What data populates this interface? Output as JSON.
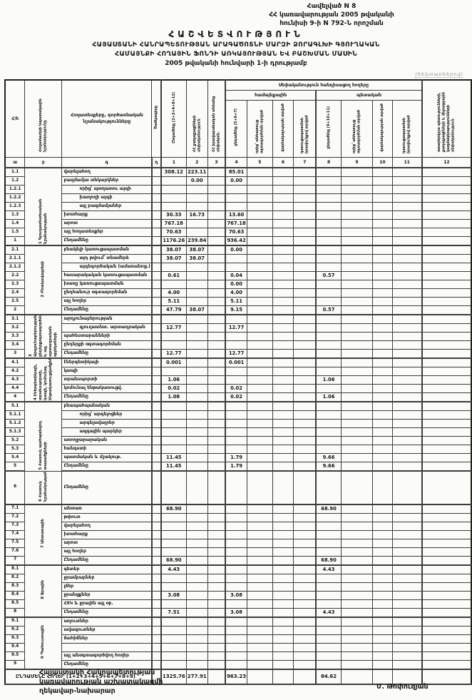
{
  "appendix": {
    "line1": "Հավելված N 8",
    "line2": "ՀՀ կառավարության 2005 թվականի",
    "line3": "հունիսի 9-ի N 792-Ն որոշման"
  },
  "title": {
    "line1": "ՀԱՇՎԵՏՎՈՒԹՅՈՒՆ",
    "line2": "ՀԱՅԱՍՏԱՆԻ ՀԱՆՐԱՊԵՏՈՒԹՅԱՆ ԱՐԱԳԱԾՈՏՆԻ ՄԱՐԶԻ ՁՈՐԱԳԼԽԻ ԳՅՈՒՂԱԿԱՆ",
    "line3": "ՀԱՄԱՅՆՔԻ ՀՈՂԱՅԻՆ ՖՈՆԴԻ ԱՌԿԱՅՈՒԹՅԱՆ ԵՎ ԲԱՇԽՄԱՆ ՄԱՍԻՆ",
    "line4": "2005 թվականի հունվարի 1-ի դրությամբ"
  },
  "unit_note": "(հեկտարներով)",
  "table": {
    "header": {
      "hh": "Հ/հ",
      "purpose": "Հողամասերի նպատակային նշանակությունը",
      "landtype": "Հողատեսքերը, գործառնական նշանակությունները",
      "code": "Ծածկագիրը",
      "c1": "Ընդամենը (2+3+4+8+12)",
      "c2": "ՀՀ քաղաքացիների սեփականություն",
      "c3": "ՀՀ իրավաբանական անձանց սեփական.",
      "group_band": "Սեփականություն հանդիսացող հողերը",
      "subgroup_left": "համայնքային",
      "subgroup_right": "պետական",
      "c4": "ընդամենը (5+6+7)",
      "c5": "որից՝ անհատույց օգտագործման տրված",
      "c6": "վարձակալության տրված",
      "c7": "կառուցապատման իրավունքով տրված",
      "c8": "ընդամենը (9+10+11)",
      "c9": "որից՝ անհատույց օգտագործման տրված",
      "c10": "վարձակալության տրված",
      "c11": "կառուցապատման իրավունքով տրված",
      "c12": "օտարերկրյա պետությունների, քաղաքացիների և միջազգային կազմակերպությունների սեփականություն"
    },
    "col_numbers": [
      "ա",
      "բ",
      "գ",
      "դ",
      "1",
      "2",
      "3",
      "4",
      "5",
      "6",
      "7",
      "8",
      "9",
      "10",
      "11",
      "12"
    ],
    "groups": [
      {
        "label": "1 Գյուղատնտեսական նշանակության",
        "rows": [
          {
            "n": "1.1",
            "t": "վարելահող",
            "v": {
              "c1": "308.12",
              "c2": "223.11",
              "c4": "85.01"
            }
          },
          {
            "n": "1.2",
            "t": "բազմամյա տնկարկներ",
            "v": {
              "c2": "0.00",
              "c4": "0.00"
            }
          },
          {
            "n": "1.2.1",
            "t": "որից՝ պտղատու այգի",
            "i": 1
          },
          {
            "n": "1.2.2",
            "t": "խաղողի այգի",
            "i": 1
          },
          {
            "n": "1.2.3",
            "t": "այլ բազմամյաներ",
            "i": 1
          },
          {
            "n": "1.3",
            "t": "խոտհարք",
            "v": {
              "c1": "30.33",
              "c2": "16.73",
              "c4": "13.60"
            }
          },
          {
            "n": "1.4",
            "t": "արոտ",
            "v": {
              "c1": "767.18",
              "c4": "767.18"
            }
          },
          {
            "n": "1.5",
            "t": "այլ հողատեսքեր",
            "v": {
              "c1": "70.63",
              "c4": "70.63"
            }
          },
          {
            "n": "1",
            "t": "Ընդամենը",
            "b": 1,
            "v": {
              "c1": "1176.26",
              "c2": "239.84",
              "c4": "936.42"
            }
          }
        ]
      },
      {
        "label": "2 Բնակավայրերի",
        "rows": [
          {
            "n": "2.1",
            "t": "բնակելի կառուցապատման",
            "v": {
              "c1": "38.07",
              "c2": "38.07",
              "c4": "0.00"
            }
          },
          {
            "n": "2.1.1",
            "t": "այդ թվում՝ տնամերձ",
            "i": 1,
            "v": {
              "c1": "38.07",
              "c2": "38.07"
            }
          },
          {
            "n": "2.1.2",
            "t": "այգեգործական (ամառանոց.)",
            "i": 1
          },
          {
            "n": "2.2",
            "t": "հասարակական կառուցապատման",
            "v": {
              "c1": "0.61",
              "c4": "0.04",
              "c8": "0.57"
            }
          },
          {
            "n": "2.3",
            "t": "խառը կառուցապատման",
            "v": {
              "c4": "0.00"
            }
          },
          {
            "n": "2.4",
            "t": "ընդհանուր օգտագործման",
            "v": {
              "c1": "4.00",
              "c4": "4.00"
            }
          },
          {
            "n": "2.5",
            "t": "այլ հողեր",
            "v": {
              "c1": "5.11",
              "c4": "5.11"
            }
          },
          {
            "n": "2",
            "t": "Ընդամենը",
            "b": 1,
            "v": {
              "c1": "47.79",
              "c2": "38.07",
              "c4": "9.15",
              "c8": "0.57"
            }
          }
        ]
      },
      {
        "label": "3 Արդյունաբերության, ընդերքօգտագործման և այլ արտադրական օբյեկտների",
        "rows": [
          {
            "n": "3.1",
            "t": "արդյունաբերության"
          },
          {
            "n": "3.2",
            "t": "գյուղատնտ. արտադրական",
            "i": 1,
            "v": {
              "c1": "12.77",
              "c4": "12.77"
            }
          },
          {
            "n": "3.3",
            "t": "պահեստարանների"
          },
          {
            "n": "3.4",
            "t": "ընդերքի օգտագործման"
          },
          {
            "n": "3",
            "t": "Ընդամենը",
            "b": 1,
            "v": {
              "c1": "12.77",
              "c4": "12.77"
            }
          }
        ]
      },
      {
        "label": "4 Էներգետիկայի, տրանսպորտի, կապի, կոմունալ ենթակառուցվածքների",
        "rows": [
          {
            "n": "4.1",
            "t": "էներգետիկայի",
            "v": {
              "c1": "0.001",
              "c4": "0.001"
            }
          },
          {
            "n": "4.2",
            "t": "կապի"
          },
          {
            "n": "4.3",
            "t": "տրանսպորտի",
            "v": {
              "c1": "1.06",
              "c8": "1.06"
            }
          },
          {
            "n": "4.4",
            "t": "կոմունալ ենթակառուցվ.",
            "v": {
              "c1": "0.02",
              "c4": "0.02"
            }
          },
          {
            "n": "4",
            "t": "Ընդամենը",
            "b": 1,
            "v": {
              "c1": "1.08",
              "c4": "0.02",
              "c8": "1.06"
            }
          }
        ]
      },
      {
        "label": "5 Հատուկ պահպանվող տարածքների",
        "rows": [
          {
            "n": "5.1",
            "t": "բնապահպանական"
          },
          {
            "n": "5.1.1",
            "t": "որից՝ արգելոցներ",
            "i": 1
          },
          {
            "n": "5.1.2",
            "t": "արգելավայրեր",
            "i": 1
          },
          {
            "n": "5.1.3",
            "t": "ազգային պարկեր",
            "i": 1
          },
          {
            "n": "5.2",
            "t": "առողջարարական"
          },
          {
            "n": "5.3",
            "t": "հանգստի"
          },
          {
            "n": "5.4",
            "t": "պատմական և մշակութ.",
            "v": {
              "c1": "11.45",
              "c4": "1.79",
              "c8": "9.66"
            }
          },
          {
            "n": "5",
            "t": "Ընդամենը",
            "b": 1,
            "v": {
              "c1": "11.45",
              "c4": "1.79",
              "c8": "9.66"
            }
          }
        ]
      },
      {
        "label": "6 Հատուկ նշանակության",
        "tall": 1,
        "rows": [
          {
            "n": "6",
            "t": "Ընդամենը",
            "b": 1
          }
        ]
      },
      {
        "label": "7 Անտառային",
        "rows": [
          {
            "n": "7.1",
            "t": "անտառ",
            "v": {
              "c1": "68.90",
              "c8": "68.90"
            }
          },
          {
            "n": "7.2",
            "t": "թփուտ"
          },
          {
            "n": "7.3",
            "t": "վարելահող"
          },
          {
            "n": "7.4",
            "t": "խոտհարք"
          },
          {
            "n": "7.5",
            "t": "արոտ"
          },
          {
            "n": "7.6",
            "t": "այլ հողեր"
          },
          {
            "n": "7",
            "t": "Ընդամենը",
            "b": 1,
            "v": {
              "c1": "68.90",
              "c8": "68.90"
            }
          }
        ]
      },
      {
        "label": "8 Ջրային",
        "rows": [
          {
            "n": "8.1",
            "t": "գետեր",
            "v": {
              "c1": "4.43",
              "c8": "4.43"
            }
          },
          {
            "n": "8.2",
            "t": "ջրամբարներ"
          },
          {
            "n": "8.3",
            "t": "լճեր"
          },
          {
            "n": "8.4",
            "t": "ջրանցքներ",
            "v": {
              "c1": "3.08",
              "c4": "3.08"
            }
          },
          {
            "n": "8.5",
            "t": "ՀՏԿ և ջրային այլ օբ."
          },
          {
            "n": "8",
            "t": "Ընդամենը",
            "b": 1,
            "v": {
              "c1": "7.51",
              "c4": "3.08",
              "c8": "4.43"
            }
          }
        ]
      },
      {
        "label": "9 Պահուստային",
        "rows": [
          {
            "n": "9.1",
            "t": "աղուտներ"
          },
          {
            "n": "9.2",
            "t": "ավազուտներ"
          },
          {
            "n": "9.3",
            "t": "ճահիճներ"
          },
          {
            "n": "9.4",
            "t": ""
          },
          {
            "n": "9.5",
            "t": "այլ անօգտագործվող հողեր"
          },
          {
            "n": "9",
            "t": "Ընդամենը",
            "b": 1
          }
        ]
      }
    ],
    "grand": {
      "label": "ԸՆԴԱՄԵՆԸ ՀՈՂԵՐ (1+2+3+4+5+6+7+8+9)",
      "v": {
        "c1": "1325.76",
        "c2": "277.91",
        "c4": "963.23",
        "c8": "84.62"
      }
    }
  },
  "signature": {
    "line1": "Հայաստանի Հանրապետության",
    "line2": "կառավարության աշխատակազմի",
    "line3": "ղեկավար-նախարար",
    "name": "Մ. Թոփուզյան"
  }
}
